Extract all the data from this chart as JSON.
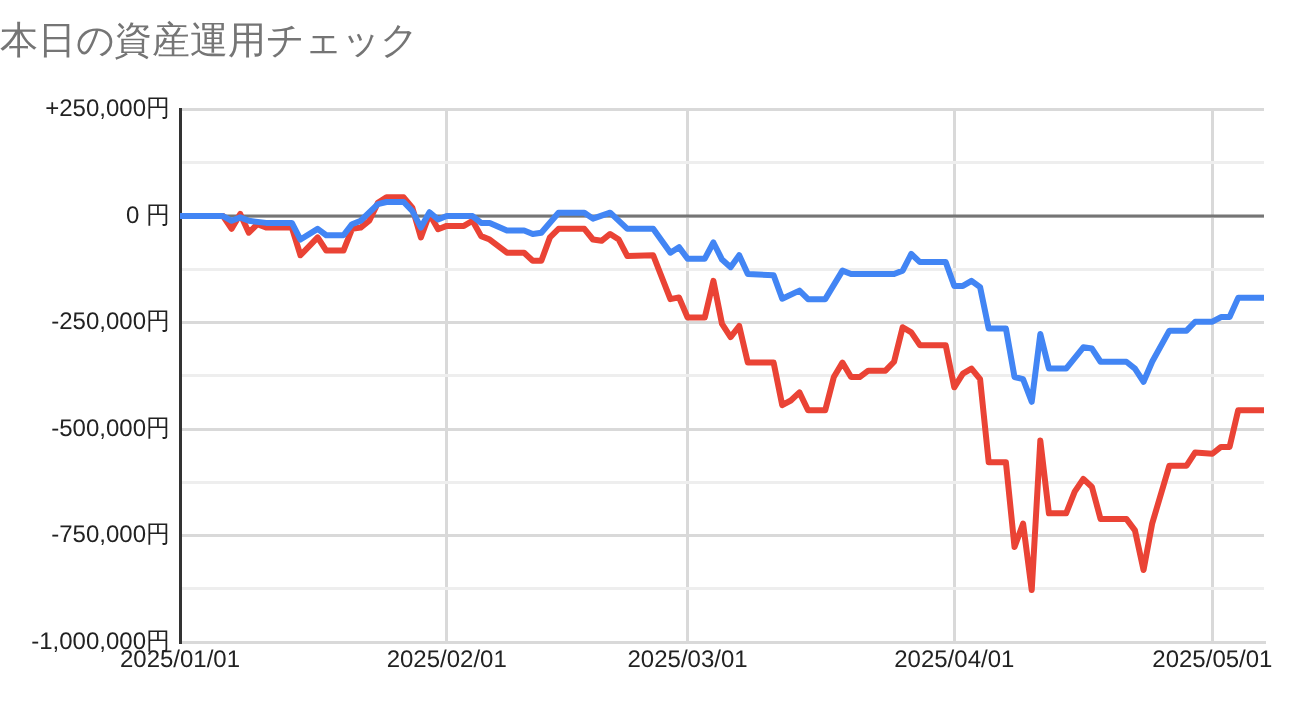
{
  "chart_data": {
    "type": "line",
    "title": "本日の資産運用チェック",
    "grid": true,
    "legend": false,
    "marker": "none",
    "line_style": "solid",
    "xlim": [
      "2025-01-01",
      "2025-05-07"
    ],
    "xticks": [
      {
        "value": "2025-01-01",
        "label": "2025/01/01"
      },
      {
        "value": "2025-02-01",
        "label": "2025/02/01"
      },
      {
        "value": "2025-03-01",
        "label": "2025/03/01"
      },
      {
        "value": "2025-04-01",
        "label": "2025/04/01"
      },
      {
        "value": "2025-05-01",
        "label": "2025/05/01"
      }
    ],
    "ylim": [
      -1000000,
      250000
    ],
    "yticks": [
      {
        "value": 250000,
        "label": "+250,000円"
      },
      {
        "value": 125000,
        "label": null
      },
      {
        "value": 0,
        "label": "0 円"
      },
      {
        "value": -125000,
        "label": null
      },
      {
        "value": -250000,
        "label": "-250,000円"
      },
      {
        "value": -375000,
        "label": null
      },
      {
        "value": -500000,
        "label": "-500,000円"
      },
      {
        "value": -625000,
        "label": null
      },
      {
        "value": -750000,
        "label": "-750,000円"
      },
      {
        "value": -875000,
        "label": null
      },
      {
        "value": -1000000,
        "label": "-1,000,000円"
      }
    ],
    "ref_lines": [
      {
        "axis": "y",
        "value": 0,
        "color": "#757575"
      }
    ],
    "series": [
      {
        "color": "#4285f4",
        "x": [
          "2025-01-01",
          "2025-01-06",
          "2025-01-07",
          "2025-01-08",
          "2025-01-09",
          "2025-01-11",
          "2025-01-14",
          "2025-01-15",
          "2025-01-17",
          "2025-01-18",
          "2025-01-20",
          "2025-01-21",
          "2025-01-22",
          "2025-01-24",
          "2025-01-25",
          "2025-01-27",
          "2025-01-28",
          "2025-01-29",
          "2025-01-30",
          "2025-01-31",
          "2025-02-01",
          "2025-02-04",
          "2025-02-05",
          "2025-02-06",
          "2025-02-08",
          "2025-02-10",
          "2025-02-11",
          "2025-02-12",
          "2025-02-14",
          "2025-02-17",
          "2025-02-18",
          "2025-02-20",
          "2025-02-22",
          "2025-02-25",
          "2025-02-27",
          "2025-02-28",
          "2025-03-01",
          "2025-03-03",
          "2025-03-04",
          "2025-03-05",
          "2025-03-06",
          "2025-03-07",
          "2025-03-08",
          "2025-03-11",
          "2025-03-12",
          "2025-03-14",
          "2025-03-15",
          "2025-03-17",
          "2025-03-19",
          "2025-03-20",
          "2025-03-25",
          "2025-03-26",
          "2025-03-27",
          "2025-03-28",
          "2025-03-31",
          "2025-04-01",
          "2025-04-02",
          "2025-04-03",
          "2025-04-04",
          "2025-04-05",
          "2025-04-07",
          "2025-04-08",
          "2025-04-09",
          "2025-04-10",
          "2025-04-11",
          "2025-04-12",
          "2025-04-14",
          "2025-04-16",
          "2025-04-17",
          "2025-04-18",
          "2025-04-21",
          "2025-04-22",
          "2025-04-23",
          "2025-04-24",
          "2025-04-26",
          "2025-04-28",
          "2025-04-29",
          "2025-05-01",
          "2025-05-02",
          "2025-05-03",
          "2025-05-04",
          "2025-05-07"
        ],
        "values": [
          0,
          0,
          -11000,
          -3000,
          -11000,
          -16000,
          -16000,
          -55000,
          -30000,
          -45000,
          -45000,
          -19000,
          -11000,
          28000,
          33000,
          33000,
          12000,
          -27000,
          9000,
          -8000,
          0,
          0,
          -16000,
          -16000,
          -34000,
          -34000,
          -42000,
          -39000,
          8000,
          8000,
          -6000,
          8000,
          -30000,
          -30000,
          -86000,
          -73000,
          -100000,
          -100000,
          -62000,
          -102000,
          -120000,
          -92000,
          -136000,
          -139000,
          -194000,
          -175000,
          -195000,
          -195000,
          -128000,
          -136000,
          -136000,
          -128000,
          -89000,
          -108000,
          -108000,
          -164000,
          -164000,
          -152000,
          -167000,
          -264000,
          -264000,
          -378000,
          -383000,
          -436000,
          -277000,
          -358000,
          -358000,
          -308000,
          -311000,
          -342000,
          -342000,
          -358000,
          -389000,
          -342000,
          -269000,
          -269000,
          -248000,
          -248000,
          -237000,
          -237000,
          -192000,
          -192000
        ]
      },
      {
        "color": "#ea4335",
        "x": [
          "2025-01-01",
          "2025-01-06",
          "2025-01-07",
          "2025-01-08",
          "2025-01-09",
          "2025-01-10",
          "2025-01-11",
          "2025-01-14",
          "2025-01-15",
          "2025-01-17",
          "2025-01-18",
          "2025-01-20",
          "2025-01-21",
          "2025-01-22",
          "2025-01-23",
          "2025-01-24",
          "2025-01-25",
          "2025-01-27",
          "2025-01-28",
          "2025-01-29",
          "2025-01-30",
          "2025-01-31",
          "2025-02-01",
          "2025-02-03",
          "2025-02-04",
          "2025-02-05",
          "2025-02-06",
          "2025-02-08",
          "2025-02-10",
          "2025-02-11",
          "2025-02-12",
          "2025-02-13",
          "2025-02-14",
          "2025-02-17",
          "2025-02-18",
          "2025-02-19",
          "2025-02-20",
          "2025-02-21",
          "2025-02-22",
          "2025-02-25",
          "2025-02-27",
          "2025-02-28",
          "2025-03-01",
          "2025-03-03",
          "2025-03-04",
          "2025-03-05",
          "2025-03-06",
          "2025-03-07",
          "2025-03-08",
          "2025-03-11",
          "2025-03-12",
          "2025-03-13",
          "2025-03-14",
          "2025-03-15",
          "2025-03-17",
          "2025-03-18",
          "2025-03-19",
          "2025-03-20",
          "2025-03-21",
          "2025-03-22",
          "2025-03-24",
          "2025-03-25",
          "2025-03-26",
          "2025-03-27",
          "2025-03-28",
          "2025-03-31",
          "2025-04-01",
          "2025-04-02",
          "2025-04-03",
          "2025-04-04",
          "2025-04-05",
          "2025-04-07",
          "2025-04-08",
          "2025-04-09",
          "2025-04-10",
          "2025-04-11",
          "2025-04-12",
          "2025-04-14",
          "2025-04-15",
          "2025-04-16",
          "2025-04-17",
          "2025-04-18",
          "2025-04-21",
          "2025-04-22",
          "2025-04-23",
          "2025-04-24",
          "2025-04-26",
          "2025-04-28",
          "2025-04-29",
          "2025-05-01",
          "2025-05-02",
          "2025-05-03",
          "2025-05-04",
          "2025-05-07"
        ],
        "values": [
          0,
          0,
          -30000,
          5000,
          -39000,
          -19000,
          -27000,
          -27000,
          -92000,
          -50000,
          -81000,
          -81000,
          -30000,
          -27000,
          -11000,
          31000,
          44000,
          44000,
          20000,
          -50000,
          5000,
          -31000,
          -23000,
          -23000,
          -11000,
          -47000,
          -55000,
          -86000,
          -86000,
          -105000,
          -105000,
          -50000,
          -30000,
          -30000,
          -55000,
          -58000,
          -42000,
          -55000,
          -94000,
          -92000,
          -195000,
          -191000,
          -238000,
          -238000,
          -152000,
          -253000,
          -284000,
          -258000,
          -344000,
          -344000,
          -444000,
          -433000,
          -414000,
          -456000,
          -456000,
          -378000,
          -344000,
          -378000,
          -378000,
          -363000,
          -363000,
          -342000,
          -261000,
          -273000,
          -303000,
          -303000,
          -402000,
          -370000,
          -358000,
          -383000,
          -578000,
          -578000,
          -777000,
          -722000,
          -878000,
          -527000,
          -698000,
          -698000,
          -647000,
          -617000,
          -636000,
          -711000,
          -711000,
          -738000,
          -831000,
          -722000,
          -586000,
          -586000,
          -555000,
          -558000,
          -542000,
          -542000,
          -456000,
          -456000
        ]
      }
    ]
  }
}
